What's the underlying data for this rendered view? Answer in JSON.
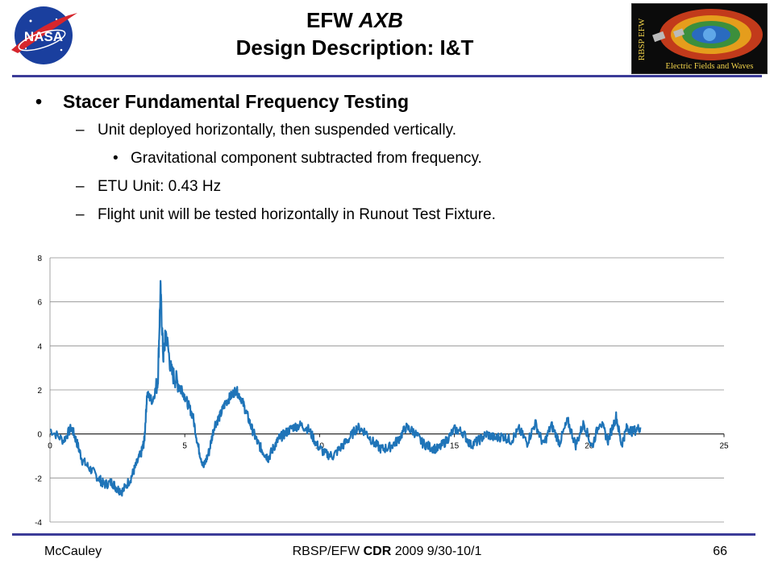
{
  "header": {
    "title_part1": "EFW ",
    "title_part2": "AXB",
    "title_line2": "Design Description: I&T",
    "nasa_logo_text": "NASA",
    "mission_logo_vertical": "RBSP EFW",
    "mission_logo_caption": "Electric Fields and Waves"
  },
  "bullets": {
    "b1": {
      "mark": "•",
      "text": "Stacer Fundamental Frequency Testing"
    },
    "b2": {
      "mark": "–",
      "text": "Unit deployed horizontally, then suspended vertically."
    },
    "b3": {
      "mark": "•",
      "text": "Gravitational component subtracted from frequency."
    },
    "b4": {
      "mark": "–",
      "text": "ETU Unit: 0.43 Hz"
    },
    "b5": {
      "mark": "–",
      "text": "Flight unit will be tested horizontally in Runout Test Fixture."
    }
  },
  "chart_data": {
    "type": "line",
    "title": "",
    "xlabel": "",
    "ylabel": "",
    "xlim": [
      0,
      25
    ],
    "ylim": [
      -4,
      8
    ],
    "x_ticks": [
      0,
      5,
      10,
      15,
      20,
      25
    ],
    "y_ticks": [
      -4,
      -2,
      0,
      2,
      4,
      6,
      8
    ],
    "grid": true,
    "legend": "none",
    "color": "#1f74b8",
    "series": [
      {
        "values": [
          [
            0.0,
            0.2
          ],
          [
            0.5,
            -0.3
          ],
          [
            0.8,
            0.3
          ],
          [
            1.0,
            -0.4
          ],
          [
            1.2,
            -1.2
          ],
          [
            1.5,
            -1.6
          ],
          [
            1.8,
            -2.0
          ],
          [
            2.0,
            -2.3
          ],
          [
            2.3,
            -2.2
          ],
          [
            2.5,
            -2.5
          ],
          [
            2.7,
            -2.6
          ],
          [
            3.0,
            -2.0
          ],
          [
            3.2,
            -1.4
          ],
          [
            3.4,
            -0.8
          ],
          [
            3.5,
            -0.3
          ],
          [
            3.6,
            1.8
          ],
          [
            3.8,
            1.5
          ],
          [
            4.0,
            2.4
          ],
          [
            4.1,
            6.6
          ],
          [
            4.2,
            3.5
          ],
          [
            4.3,
            4.6
          ],
          [
            4.5,
            2.8
          ],
          [
            4.7,
            2.4
          ],
          [
            4.9,
            2.0
          ],
          [
            5.1,
            1.4
          ],
          [
            5.3,
            0.8
          ],
          [
            5.5,
            -0.6
          ],
          [
            5.7,
            -1.5
          ],
          [
            5.9,
            -0.8
          ],
          [
            6.1,
            0.4
          ],
          [
            6.3,
            0.8
          ],
          [
            6.5,
            1.4
          ],
          [
            6.7,
            1.7
          ],
          [
            6.9,
            2.0
          ],
          [
            7.1,
            1.6
          ],
          [
            7.3,
            0.9
          ],
          [
            7.5,
            0.2
          ],
          [
            7.7,
            -0.4
          ],
          [
            7.9,
            -0.8
          ],
          [
            8.1,
            -1.1
          ],
          [
            8.3,
            -0.6
          ],
          [
            8.5,
            -0.2
          ],
          [
            8.7,
            0.0
          ],
          [
            9.0,
            0.3
          ],
          [
            9.3,
            0.4
          ],
          [
            9.6,
            0.2
          ],
          [
            9.9,
            -0.5
          ],
          [
            10.2,
            -0.9
          ],
          [
            10.5,
            -1.0
          ],
          [
            10.8,
            -0.6
          ],
          [
            11.1,
            -0.2
          ],
          [
            11.4,
            0.3
          ],
          [
            11.7,
            0.1
          ],
          [
            12.0,
            -0.4
          ],
          [
            12.3,
            -0.7
          ],
          [
            12.6,
            -0.6
          ],
          [
            12.9,
            -0.3
          ],
          [
            13.2,
            0.3
          ],
          [
            13.5,
            0.1
          ],
          [
            13.8,
            -0.4
          ],
          [
            14.1,
            -0.6
          ],
          [
            14.4,
            -0.7
          ],
          [
            14.7,
            -0.3
          ],
          [
            15.0,
            0.2
          ],
          [
            15.3,
            0.1
          ],
          [
            15.6,
            -0.5
          ],
          [
            15.9,
            -0.3
          ],
          [
            16.2,
            0.0
          ],
          [
            16.5,
            -0.2
          ],
          [
            16.8,
            -0.1
          ],
          [
            17.1,
            -0.3
          ],
          [
            17.4,
            0.2
          ],
          [
            17.7,
            -0.4
          ],
          [
            18.0,
            0.5
          ],
          [
            18.3,
            -0.5
          ],
          [
            18.6,
            0.4
          ],
          [
            18.9,
            -0.4
          ],
          [
            19.2,
            0.6
          ],
          [
            19.5,
            -0.5
          ],
          [
            19.8,
            0.5
          ],
          [
            20.1,
            -0.6
          ],
          [
            20.4,
            0.6
          ],
          [
            20.7,
            -0.3
          ],
          [
            21.0,
            0.8
          ],
          [
            21.2,
            -0.5
          ],
          [
            21.4,
            0.3
          ],
          [
            21.6,
            0.1
          ],
          [
            21.9,
            0.3
          ]
        ]
      }
    ]
  },
  "footer": {
    "author": "McCauley",
    "center_part1": "RBSP/EFW ",
    "center_part2": "CDR",
    "center_part3": " 2009 9/30-10/1",
    "page": "66"
  }
}
